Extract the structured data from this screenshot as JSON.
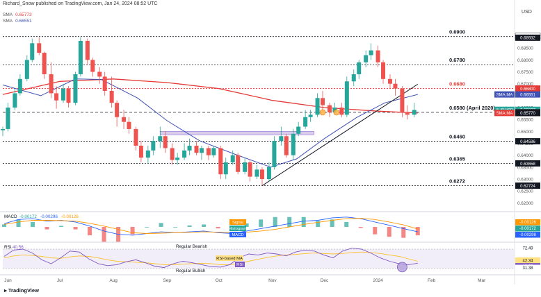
{
  "header": {
    "title": "Richard_Snow published on TradingView.com, Jan 24, 2024 08:52 UTC",
    "currency": "USD"
  },
  "legend": {
    "sma1_name": "SMA",
    "sma1_value": "0.65773",
    "sma1_color": "#e53935",
    "sma2_name": "SMA",
    "sma2_value": "0.66551",
    "sma2_color": "#3f51b5"
  },
  "footer": {
    "brand": "TradingView"
  },
  "chart_data": [
    {
      "type": "candlestick",
      "title": "",
      "xlabel": "",
      "ylabel": "",
      "ylim": [
        0.6172,
        0.6935
      ],
      "x_ticks": [
        "Jun",
        "Jul",
        "Aug",
        "Sep",
        "Oct",
        "Nov",
        "Dec",
        "2024",
        "Feb",
        "Mar"
      ],
      "y_ticks": [
        "0.68500",
        "0.68000",
        "0.67500",
        "0.67000",
        "0.66500",
        "0.66000",
        "0.65500",
        "0.65000",
        "0.64500",
        "0.64000",
        "0.63500",
        "0.63000",
        "0.62500",
        "0.62000"
      ],
      "levels": [
        {
          "label": "0.6900",
          "value": 0.6898
        },
        {
          "label": "0.6780",
          "value": 0.678
        },
        {
          "label": "0.6680",
          "value": 0.668
        },
        {
          "label": "0.6580 (April 2020)",
          "value": 0.658
        },
        {
          "label": "0.6460",
          "value": 0.6459
        },
        {
          "label": "0.6365",
          "value": 0.6366
        },
        {
          "label": "0.6272",
          "value": 0.6272
        }
      ],
      "price_tags": [
        {
          "text": "0.68996",
          "value": 0.68996,
          "bg": "#ffffff",
          "fg": "#131722"
        },
        {
          "text": "0.68932",
          "value": 0.68932,
          "bg": "#131722",
          "fg": "#ffffff"
        },
        {
          "text": "0.66800",
          "value": 0.668,
          "bg": "#e53935",
          "fg": "#ffffff"
        },
        {
          "text": "0.66551",
          "value": 0.66551,
          "bg": "#3f51b5",
          "fg": "#ffffff"
        },
        {
          "text": "0.65907",
          "value": 0.65907,
          "bg": "#26a69a",
          "fg": "#ffffff"
        },
        {
          "text": "13:07:24",
          "value": 0.6579,
          "bg": "#26a69a",
          "fg": "#ffffff"
        },
        {
          "text": "0.65802",
          "value": 0.65802,
          "bg": "#131722",
          "fg": "#ffffff"
        },
        {
          "text": "0.65773",
          "value": 0.65773,
          "bg": "#e53935",
          "fg": "#ffffff"
        },
        {
          "text": "0.65770",
          "value": 0.6577,
          "bg": "#131722",
          "fg": "#ffffff"
        },
        {
          "text": "0.64586",
          "value": 0.64586,
          "bg": "#131722",
          "fg": "#ffffff"
        },
        {
          "text": "0.63658",
          "value": 0.63658,
          "bg": "#131722",
          "fg": "#ffffff"
        },
        {
          "text": "0.62724",
          "value": 0.62724,
          "bg": "#131722",
          "fg": "#ffffff"
        }
      ],
      "tag_labels": [
        {
          "text": "SMA:MA",
          "value": 0.66551,
          "bg": "#3f51b5"
        },
        {
          "text": "AUDUSD",
          "value": 0.65907,
          "bg": "#26a69a"
        },
        {
          "text": "SMA:MA",
          "value": 0.65773,
          "bg": "#e53935"
        }
      ],
      "support_zone": [
        0.6486,
        0.65
      ],
      "trendline": {
        "x1": "2023-10-26",
        "y1": 0.6272,
        "x2": "2024-01-24",
        "y2": 0.6698
      },
      "sma_200": {
        "name": "SMA",
        "points": [
          [
            "2023-05-29",
            0.6655
          ],
          [
            "2023-07-01",
            0.671
          ],
          [
            "2023-08-01",
            0.672
          ],
          [
            "2023-09-01",
            0.6705
          ],
          [
            "2023-10-01",
            0.668
          ],
          [
            "2023-11-01",
            0.663
          ],
          [
            "2023-12-01",
            0.66
          ],
          [
            "2024-01-01",
            0.6585
          ],
          [
            "2024-01-24",
            0.6577
          ]
        ]
      },
      "sma_50": {
        "name": "SMA",
        "points": [
          [
            "2023-05-29",
            0.6695
          ],
          [
            "2023-06-20",
            0.665
          ],
          [
            "2023-07-10",
            0.672
          ],
          [
            "2023-07-25",
            0.6718
          ],
          [
            "2023-08-15",
            0.664
          ],
          [
            "2023-09-01",
            0.6545
          ],
          [
            "2023-09-20",
            0.646
          ],
          [
            "2023-10-10",
            0.6405
          ],
          [
            "2023-10-31",
            0.635
          ],
          [
            "2023-11-15",
            0.6385
          ],
          [
            "2023-12-01",
            0.647
          ],
          [
            "2023-12-20",
            0.656
          ],
          [
            "2024-01-05",
            0.662
          ],
          [
            "2024-01-24",
            0.6655
          ]
        ]
      },
      "candles": [
        [
          "2023-05-29",
          0.6505,
          0.652,
          0.648,
          0.651
        ],
        [
          "2023-06-01",
          0.651,
          0.662,
          0.65,
          0.66
        ],
        [
          "2023-06-05",
          0.66,
          0.668,
          0.659,
          0.666
        ],
        [
          "2023-06-08",
          0.666,
          0.674,
          0.665,
          0.672
        ],
        [
          "2023-06-12",
          0.672,
          0.682,
          0.671,
          0.68
        ],
        [
          "2023-06-15",
          0.68,
          0.689,
          0.679,
          0.687
        ],
        [
          "2023-06-19",
          0.687,
          0.6895,
          0.682,
          0.683
        ],
        [
          "2023-06-22",
          0.683,
          0.6835,
          0.672,
          0.674
        ],
        [
          "2023-06-26",
          0.674,
          0.679,
          0.664,
          0.666
        ],
        [
          "2023-06-29",
          0.666,
          0.669,
          0.6595,
          0.663
        ],
        [
          "2023-07-03",
          0.663,
          0.67,
          0.662,
          0.668
        ],
        [
          "2023-07-06",
          0.668,
          0.669,
          0.66,
          0.662
        ],
        [
          "2023-07-10",
          0.662,
          0.675,
          0.661,
          0.674
        ],
        [
          "2023-07-13",
          0.674,
          0.6895,
          0.673,
          0.688
        ],
        [
          "2023-07-17",
          0.688,
          0.689,
          0.678,
          0.68
        ],
        [
          "2023-07-20",
          0.68,
          0.681,
          0.673,
          0.675
        ],
        [
          "2023-07-24",
          0.675,
          0.677,
          0.67,
          0.673
        ],
        [
          "2023-07-27",
          0.673,
          0.675,
          0.665,
          0.667
        ],
        [
          "2023-07-31",
          0.667,
          0.673,
          0.66,
          0.662
        ],
        [
          "2023-08-03",
          0.662,
          0.663,
          0.652,
          0.656
        ],
        [
          "2023-08-07",
          0.656,
          0.659,
          0.651,
          0.654
        ],
        [
          "2023-08-10",
          0.654,
          0.656,
          0.649,
          0.651
        ],
        [
          "2023-08-14",
          0.651,
          0.652,
          0.642,
          0.644
        ],
        [
          "2023-08-17",
          0.644,
          0.646,
          0.637,
          0.639
        ],
        [
          "2023-08-21",
          0.639,
          0.644,
          0.6365,
          0.642
        ],
        [
          "2023-08-24",
          0.642,
          0.648,
          0.64,
          0.646
        ],
        [
          "2023-08-28",
          0.646,
          0.652,
          0.643,
          0.648
        ],
        [
          "2023-08-31",
          0.648,
          0.65,
          0.641,
          0.643
        ],
        [
          "2023-09-04",
          0.643,
          0.645,
          0.636,
          0.638
        ],
        [
          "2023-09-07",
          0.638,
          0.641,
          0.636,
          0.639
        ],
        [
          "2023-09-11",
          0.639,
          0.645,
          0.638,
          0.642
        ],
        [
          "2023-09-14",
          0.642,
          0.647,
          0.64,
          0.644
        ],
        [
          "2023-09-18",
          0.644,
          0.646,
          0.64,
          0.641
        ],
        [
          "2023-09-21",
          0.641,
          0.644,
          0.638,
          0.643
        ],
        [
          "2023-09-25",
          0.643,
          0.644,
          0.638,
          0.64
        ],
        [
          "2023-09-28",
          0.64,
          0.644,
          0.639,
          0.643
        ],
        [
          "2023-10-02",
          0.643,
          0.644,
          0.63,
          0.632
        ],
        [
          "2023-10-05",
          0.632,
          0.639,
          0.63,
          0.637
        ],
        [
          "2023-10-09",
          0.637,
          0.642,
          0.636,
          0.64
        ],
        [
          "2023-10-12",
          0.64,
          0.641,
          0.632,
          0.633
        ],
        [
          "2023-10-16",
          0.633,
          0.639,
          0.632,
          0.637
        ],
        [
          "2023-10-19",
          0.637,
          0.638,
          0.629,
          0.631
        ],
        [
          "2023-10-23",
          0.631,
          0.636,
          0.63,
          0.634
        ],
        [
          "2023-10-26",
          0.634,
          0.635,
          0.6272,
          0.63
        ],
        [
          "2023-10-30",
          0.63,
          0.637,
          0.629,
          0.635
        ],
        [
          "2023-11-02",
          0.635,
          0.648,
          0.634,
          0.646
        ],
        [
          "2023-11-06",
          0.646,
          0.652,
          0.644,
          0.648
        ],
        [
          "2023-11-09",
          0.648,
          0.649,
          0.639,
          0.64
        ],
        [
          "2023-11-13",
          0.64,
          0.651,
          0.638,
          0.649
        ],
        [
          "2023-11-16",
          0.649,
          0.654,
          0.648,
          0.652
        ],
        [
          "2023-11-20",
          0.652,
          0.659,
          0.651,
          0.656
        ],
        [
          "2023-11-23",
          0.656,
          0.659,
          0.654,
          0.657
        ],
        [
          "2023-11-27",
          0.657,
          0.666,
          0.656,
          0.664
        ],
        [
          "2023-11-30",
          0.664,
          0.667,
          0.658,
          0.661
        ],
        [
          "2023-12-04",
          0.661,
          0.662,
          0.656,
          0.658
        ],
        [
          "2023-12-07",
          0.658,
          0.662,
          0.657,
          0.66
        ],
        [
          "2023-12-11",
          0.66,
          0.662,
          0.656,
          0.657
        ],
        [
          "2023-12-14",
          0.657,
          0.673,
          0.656,
          0.671
        ],
        [
          "2023-12-18",
          0.671,
          0.676,
          0.669,
          0.674
        ],
        [
          "2023-12-21",
          0.674,
          0.68,
          0.672,
          0.679
        ],
        [
          "2023-12-25",
          0.679,
          0.684,
          0.677,
          0.682
        ],
        [
          "2023-12-28",
          0.682,
          0.687,
          0.68,
          0.684
        ],
        [
          "2024-01-01",
          0.684,
          0.686,
          0.677,
          0.679
        ],
        [
          "2024-01-04",
          0.679,
          0.68,
          0.67,
          0.672
        ],
        [
          "2024-01-08",
          0.672,
          0.674,
          0.668,
          0.67
        ],
        [
          "2024-01-11",
          0.67,
          0.672,
          0.665,
          0.668
        ],
        [
          "2024-01-15",
          0.668,
          0.669,
          0.656,
          0.658
        ],
        [
          "2024-01-18",
          0.658,
          0.661,
          0.655,
          0.657
        ],
        [
          "2024-01-22",
          0.657,
          0.662,
          0.656,
          0.659
        ]
      ]
    },
    {
      "type": "line",
      "title": "MACD",
      "label_values": [
        "-0.00172",
        "-0.00298",
        "-0.00126"
      ],
      "axis_tags": [
        {
          "text": "-0.00126",
          "color": "#ff9800"
        },
        {
          "text": "-0.00172",
          "color": "#26a69a"
        },
        {
          "text": "-0.00298",
          "color": "#2962ff"
        }
      ],
      "legend": [
        "Signal",
        "Histogram",
        "MACD"
      ],
      "legend_colors": [
        "#ff9800",
        "#26a69a",
        "#2962ff"
      ],
      "macd": [
        0.002,
        0.0045,
        0.005,
        0.0035,
        0.004,
        0.003,
        0.0005,
        -0.0025,
        -0.0045,
        -0.005,
        -0.004,
        -0.003,
        -0.0035,
        -0.003,
        -0.0025,
        -0.0035,
        -0.004,
        -0.0025,
        -0.001,
        0.0005,
        0.002,
        0.0035,
        0.004,
        0.0055,
        0.006,
        0.005,
        0.003,
        0.001,
        -0.001,
        -0.003
      ],
      "signal": [
        0.0015,
        0.003,
        0.004,
        0.004,
        0.0038,
        0.0035,
        0.0022,
        0.0005,
        -0.0015,
        -0.0035,
        -0.004,
        -0.0038,
        -0.0035,
        -0.0033,
        -0.003,
        -0.0032,
        -0.0034,
        -0.0032,
        -0.0025,
        -0.0015,
        0.0,
        0.0015,
        0.0028,
        0.004,
        0.005,
        0.0052,
        0.0045,
        0.003,
        0.0012,
        -0.0013
      ],
      "ylim": [
        -0.008,
        0.008
      ]
    },
    {
      "type": "line",
      "title": "RSI",
      "label_value": "40.56",
      "levels": [
        "72.49",
        "42.34",
        "40.56",
        "31.38"
      ],
      "tag_colors": [
        "#ffffff",
        "#ffe082",
        "#7e57c2",
        "#ffffff"
      ],
      "legend": [
        "RSI-based MA",
        "RSI"
      ],
      "annotations": [
        "Regular Bearish",
        "Regular Bullish"
      ],
      "rsi": [
        55,
        68,
        70,
        62,
        48,
        40,
        52,
        66,
        64,
        50,
        40,
        36,
        38,
        44,
        48,
        42,
        35,
        32,
        40,
        45,
        42,
        38,
        34,
        33,
        38,
        52,
        60,
        58,
        62,
        60,
        56,
        64,
        68,
        66,
        58,
        52,
        66,
        72,
        70,
        62,
        52,
        45,
        40,
        38,
        41
      ],
      "rsi_ma": [
        52,
        56,
        58,
        57,
        55,
        52,
        51,
        54,
        56,
        55,
        52,
        48,
        45,
        44,
        43,
        42,
        40,
        38,
        38,
        39,
        40,
        41,
        40,
        38,
        38,
        41,
        45,
        49,
        53,
        56,
        58,
        59,
        61,
        62,
        61,
        60,
        61,
        63,
        64,
        63,
        61,
        58,
        55,
        50,
        45
      ],
      "ylim": [
        20,
        80
      ]
    }
  ]
}
